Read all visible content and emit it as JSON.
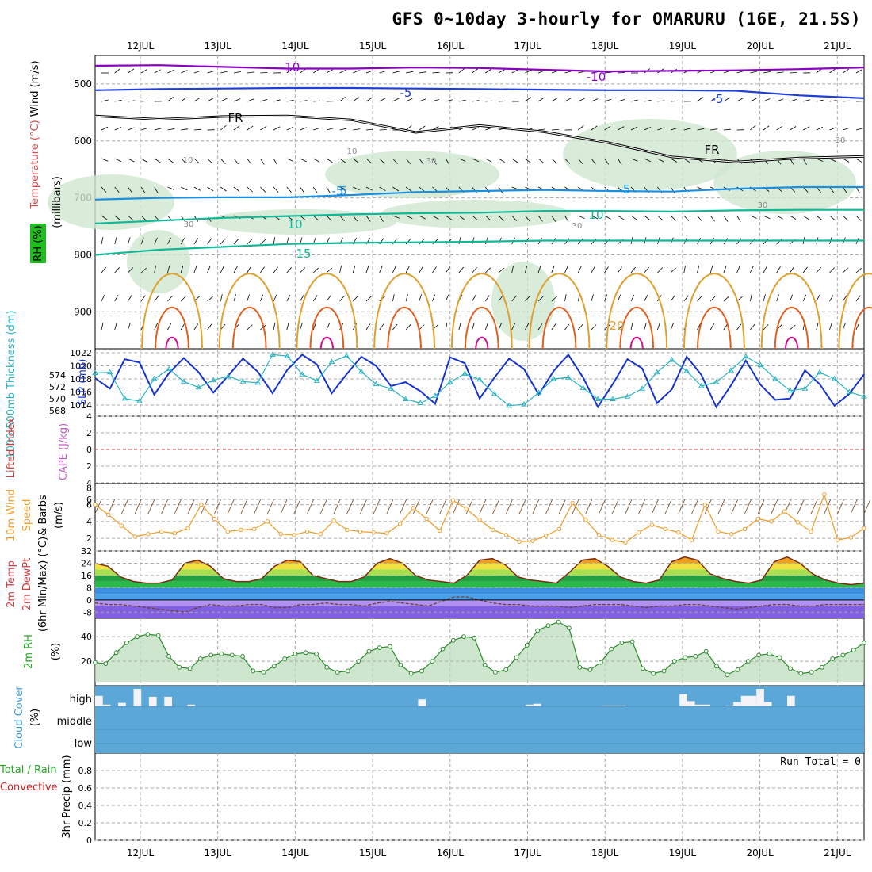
{
  "title": "GFS 0~10day 3-hourly for OMARURU (16E, 21.5S)",
  "colors": {
    "temp_cold": "#8a00c0",
    "temp_blue": "#1e3fd8",
    "temp_lt": "#1a8fe0",
    "temp_green": "#10b898",
    "warm": "#e0a030",
    "hot": "#e06020",
    "hotter": "#d01090",
    "rh_fill": "#cfe6cf",
    "slp": "#1633cc",
    "thick": "#2ab3c0",
    "wind10": "#f0a030",
    "cloud": "#5ba8d8",
    "grid": "#aaaaaa"
  },
  "chart_data": [
    {
      "type": "contour",
      "panel": "upper-air",
      "ylabels": [
        "Wind (m/s)",
        "Temperature (°C)",
        "RH (%)"
      ],
      "yunit": "(millibars)",
      "y_ticks": [
        500,
        600,
        700,
        800,
        900
      ],
      "ylim": [
        1000,
        450
      ],
      "x_ticks": [
        "12JUL",
        "13JUL",
        "14JUL",
        "15JUL",
        "16JUL",
        "17JUL",
        "18JUL",
        "19JUL",
        "20JUL",
        "21JUL"
      ],
      "contour_labels": [
        "-10",
        "-10",
        "-5",
        "-5",
        "FR",
        "FR",
        "-5",
        "-5",
        "5",
        "10",
        "10",
        "15",
        "20",
        "10",
        "10",
        "30",
        "30",
        "30",
        "30",
        "30"
      ],
      "temperature_isotherms": [
        {
          "level": -10,
          "p": [
            468,
            467,
            470,
            473,
            473,
            471,
            472,
            475,
            478,
            477,
            476,
            474,
            471
          ]
        },
        {
          "level": -5,
          "p": [
            511,
            509,
            508,
            507,
            507,
            508,
            509,
            510,
            511,
            511,
            512,
            520,
            525
          ]
        },
        {
          "level": 5,
          "p": [
            703,
            700,
            699,
            699,
            695,
            690,
            688,
            686,
            688,
            689,
            684,
            681,
            681
          ]
        },
        {
          "level": 10,
          "p": [
            745,
            740,
            735,
            732,
            729,
            727,
            726,
            723,
            723,
            724,
            722,
            721,
            721
          ]
        },
        {
          "level": 15,
          "p": [
            800,
            791,
            786,
            781,
            779,
            778,
            777,
            775,
            775,
            775,
            775,
            775,
            775
          ]
        }
      ],
      "freezing_level": {
        "p": [
          556,
          562,
          557,
          556,
          563,
          585,
          573,
          584,
          603,
          628,
          637,
          630,
          627
        ]
      }
    },
    {
      "type": "line",
      "panel": "slp-thickness",
      "ylabels": [
        "SLP (mb)",
        "1000-500mb Thickness (dm)"
      ],
      "y_ticks_left": [
        568,
        570,
        572,
        574
      ],
      "y_ticks_right": [
        1014,
        1016,
        1018,
        1020,
        1022
      ],
      "series": [
        {
          "name": "SLP (mb)",
          "values": [
            1018.1,
            1016.5,
            1021.0,
            1020.5,
            1015.6,
            1018.9,
            1021.2,
            1019.0,
            1015.9,
            1018.5,
            1021.1,
            1019.1,
            1015.8,
            1019.4,
            1021.7,
            1020.2,
            1015.8,
            1018.7,
            1021.4,
            1020.0,
            1016.9,
            1017.5,
            1016.1,
            1014.2,
            1021.3,
            1020.4,
            1015.0,
            1018.2,
            1021.1,
            1019.5,
            1015.6,
            1019.2,
            1021.7,
            1018.2,
            1013.7,
            1017.2,
            1021.0,
            1019.6,
            1014.3,
            1016.4,
            1021.4,
            1018.6,
            1013.7,
            1017.0,
            1020.8,
            1017.1,
            1014.8,
            1015.0,
            1019.3,
            1017.2,
            1013.9,
            1015.7,
            1018.7
          ]
        },
        {
          "name": "1000-500mb Thickness (dm)",
          "values": [
            1018.9,
            1019.0,
            1015.0,
            1014.6,
            1018.0,
            1019.5,
            1017.6,
            1016.7,
            1017.8,
            1018.4,
            1017.6,
            1017.4,
            1021.7,
            1021.5,
            1018.7,
            1017.7,
            1020.6,
            1021.5,
            1019.1,
            1017.2,
            1016.5,
            1014.9,
            1014.3,
            1015.4,
            1017.5,
            1018.8,
            1017.9,
            1015.7,
            1013.9,
            1014.1,
            1015.9,
            1018.0,
            1018.2,
            1016.6,
            1014.9,
            1014.9,
            1015.3,
            1016.5,
            1019.0,
            1020.9,
            1019.2,
            1016.9,
            1017.5,
            1019.3,
            1021.4,
            1020.1,
            1018.0,
            1016.2,
            1016.5,
            1019.0,
            1018.0,
            1016.0,
            1015.3
          ]
        }
      ]
    },
    {
      "type": "line",
      "panel": "instability",
      "ylabels": [
        "Lifted Index",
        "CAPE (J/kg)"
      ],
      "y_ticks": [
        -4,
        -2,
        0,
        2,
        4,
        6
      ],
      "tick_labels": [
        "4",
        "2",
        "0",
        "2",
        "4",
        "6"
      ],
      "lifted_index_zero_line": 0
    },
    {
      "type": "line",
      "panel": "wind",
      "ylabels": [
        "10m Wind",
        "Speed",
        "& Barbs",
        "(m/s)"
      ],
      "y_ticks": [
        2,
        4,
        6,
        8
      ],
      "ylim": [
        0.5,
        8.5
      ],
      "series": [
        {
          "name": "10m Wind Speed",
          "values": [
            6.0,
            4.8,
            3.5,
            2.2,
            2.5,
            2.8,
            2.6,
            3.2,
            6.0,
            4.3,
            2.8,
            3.0,
            3.1,
            4.0,
            2.5,
            2.4,
            2.8,
            2.5,
            4.1,
            3.0,
            2.8,
            2.7,
            2.6,
            3.7,
            5.6,
            4.3,
            2.9,
            6.5,
            5.5,
            4.2,
            3.0,
            2.4,
            1.6,
            1.7,
            2.3,
            3.1,
            6.2,
            4.2,
            2.4,
            1.8,
            1.5,
            2.7,
            3.6,
            3.1,
            2.7,
            1.8,
            6.0,
            2.8,
            2.5,
            3.1,
            4.3,
            4.0,
            5.2,
            3.9,
            2.8,
            7.2,
            1.8,
            2.1,
            3.2
          ]
        }
      ]
    },
    {
      "type": "area",
      "panel": "temperature",
      "ylabels": [
        "2m Temp",
        "2m DewPt",
        "(6hr Min/Max) (°C)"
      ],
      "y_ticks": [
        -8,
        0,
        8,
        16,
        24,
        32
      ],
      "ylim": [
        -12,
        32
      ],
      "series": [
        {
          "name": "2m Temp",
          "values": [
            24,
            22,
            15,
            12,
            11,
            11,
            13,
            24,
            26,
            22,
            14,
            12,
            12,
            14,
            22,
            26,
            25,
            16,
            14,
            12,
            12,
            15,
            24,
            27,
            24,
            16,
            13,
            12,
            11,
            16,
            26,
            27,
            23,
            15,
            13,
            12,
            11,
            18,
            26,
            27,
            22,
            15,
            12,
            11,
            13,
            25,
            28,
            26,
            17,
            14,
            12,
            11,
            13,
            25,
            28,
            24,
            17,
            13,
            11,
            10,
            11
          ]
        },
        {
          "name": "2m DewPt",
          "values": [
            -2,
            -3,
            -3,
            -4,
            -5,
            -6,
            -7,
            -8,
            -5,
            -3,
            -4,
            -4,
            -3,
            -3,
            -5,
            -5,
            -3,
            -3,
            -2,
            -3,
            -3,
            -4,
            -2,
            -1,
            -2,
            -3,
            -4,
            -1,
            2,
            2,
            0,
            -2,
            -3,
            -3,
            -4,
            -4,
            -4,
            -5,
            -4,
            -3,
            -3,
            -3,
            -4,
            -5,
            -4,
            -4,
            -3,
            -3,
            -4,
            -5,
            -6,
            -5,
            -4,
            -3,
            -3,
            -4,
            -4,
            -3,
            -3,
            -3,
            -3
          ]
        }
      ]
    },
    {
      "type": "area",
      "panel": "relative-humidity",
      "ylabels": [
        "2m RH",
        "(%)"
      ],
      "y_ticks": [
        20,
        40
      ],
      "ylim": [
        0,
        55
      ],
      "series": [
        {
          "name": "2m RH",
          "values": [
            19,
            18,
            27,
            35,
            40,
            42,
            41,
            24,
            15,
            14,
            22,
            25,
            26,
            25,
            24,
            12,
            11,
            16,
            22,
            26,
            27,
            26,
            15,
            11,
            12,
            20,
            28,
            31,
            32,
            17,
            10,
            12,
            20,
            30,
            37,
            40,
            39,
            17,
            11,
            13,
            23,
            33,
            45,
            49,
            52,
            47,
            15,
            13,
            19,
            30,
            35,
            36,
            14,
            10,
            12,
            20,
            23,
            24,
            28,
            16,
            9,
            13,
            20,
            25,
            26,
            23,
            14,
            10,
            11,
            15,
            22,
            25,
            29,
            35
          ]
        }
      ]
    },
    {
      "type": "bar",
      "panel": "cloud-cover",
      "ylabels": [
        "Cloud Cover",
        "(%)"
      ],
      "levels": [
        "high",
        "middle",
        "low"
      ],
      "high_cloud_percent": [
        60,
        10,
        0,
        20,
        0,
        100,
        0,
        55,
        0,
        55,
        0,
        0,
        10,
        0,
        0,
        0,
        0,
        0,
        0,
        0,
        0,
        0,
        0,
        0,
        0,
        0,
        0,
        0,
        0,
        0,
        0,
        0,
        0,
        0,
        0,
        0,
        0,
        0,
        0,
        0,
        0,
        0,
        40,
        0,
        0,
        0,
        0,
        0,
        0,
        0,
        0,
        0,
        0,
        0,
        0,
        0,
        10,
        15,
        0,
        0,
        0,
        0,
        0,
        0,
        0,
        0,
        5,
        5,
        5,
        0,
        0,
        0,
        0,
        0,
        0,
        0,
        70,
        30,
        10,
        10,
        0,
        0,
        5,
        25,
        60,
        60,
        100,
        25,
        0,
        0,
        60,
        0,
        0,
        0,
        0,
        0,
        0,
        0,
        0,
        0
      ]
    },
    {
      "type": "bar",
      "panel": "precipitation",
      "ylabels": [
        "3hr Precip (mm)",
        "Total / Rain",
        "Convective"
      ],
      "y_ticks": [
        0,
        0.2,
        0.4,
        0.6,
        0.8
      ],
      "ylim": [
        0,
        1.0
      ],
      "run_total": "Run Total = 0",
      "values": []
    }
  ]
}
